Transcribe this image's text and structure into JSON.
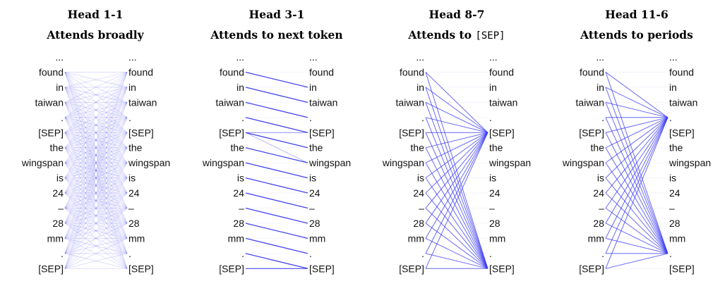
{
  "tokens": [
    "...",
    "found",
    "in",
    "taiwan",
    ".",
    "[SEP]",
    "the",
    "wingspan",
    "is",
    "24",
    "–",
    "28",
    "mm",
    ".",
    "[SEP]"
  ],
  "line_color": "#3a3af0",
  "panels": [
    {
      "head": "Head 1-1",
      "subtitle": "Attends broadly",
      "pattern": "broad"
    },
    {
      "head": "Head 3-1",
      "subtitle": "Attends to next token",
      "pattern": "next"
    },
    {
      "head": "Head 8-7",
      "subtitle_prefix": "Attends to ",
      "subtitle_code": "[SEP]",
      "pattern": "sep",
      "target_tokens": [
        5,
        14
      ]
    },
    {
      "head": "Head 11-6",
      "subtitle": "Attends to periods",
      "pattern": "period",
      "target_tokens": [
        4,
        13
      ]
    }
  ]
}
